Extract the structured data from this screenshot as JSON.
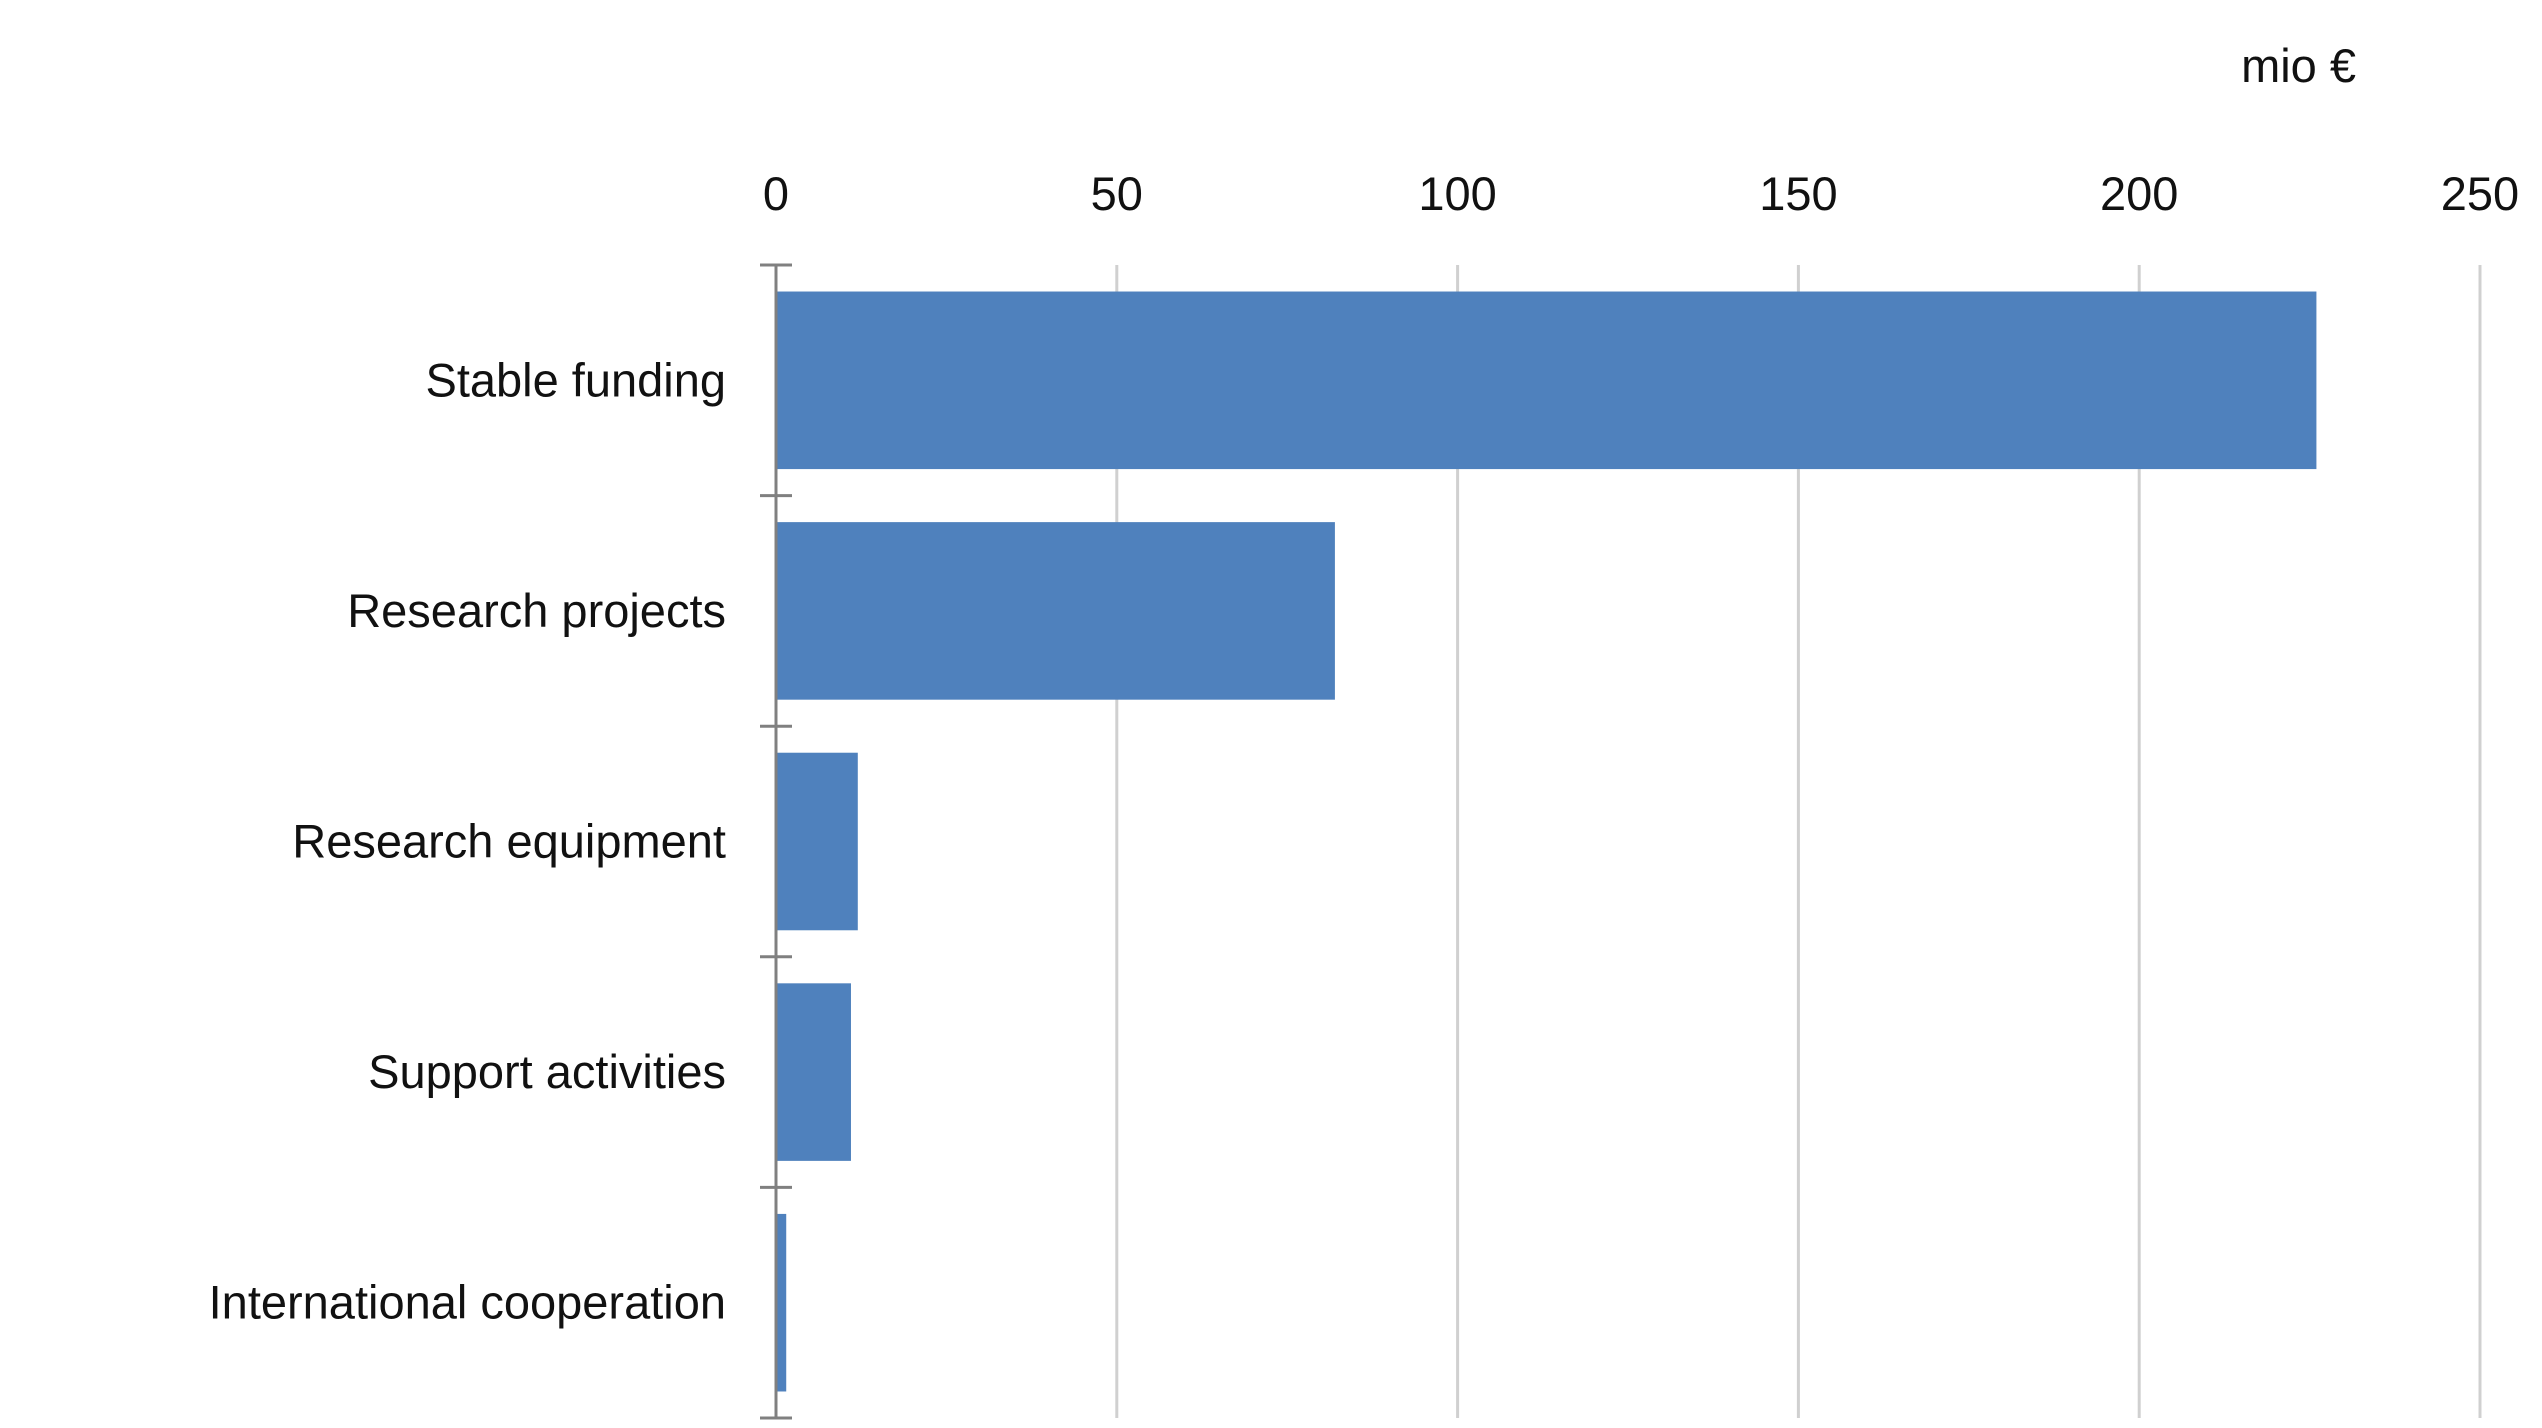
{
  "chart_data": {
    "type": "bar",
    "orientation": "horizontal",
    "title": "",
    "unit_label": "mio €",
    "categories": [
      "Stable funding",
      "Research projects",
      "Research equipment",
      "Support activities",
      "International cooperation"
    ],
    "values": [
      226,
      82,
      12,
      11,
      1.5
    ],
    "xlim": [
      0,
      250
    ],
    "xticks": [
      0,
      50,
      100,
      150,
      200,
      250
    ],
    "x_axis_position": "top",
    "grid": true,
    "legend": "none",
    "bar_color": "#4f81bd"
  }
}
